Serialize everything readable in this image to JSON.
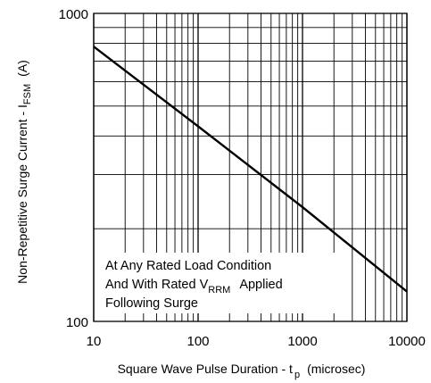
{
  "chart_data": {
    "type": "line",
    "title": "",
    "x_scale": "log",
    "y_scale": "log",
    "xlim": [
      10,
      10000
    ],
    "ylim": [
      100,
      1000
    ],
    "grid": true,
    "x_ticks": [
      {
        "value": 10,
        "label": "10"
      },
      {
        "value": 100,
        "label": "100"
      },
      {
        "value": 1000,
        "label": "1000"
      },
      {
        "value": 10000,
        "label": "10000"
      }
    ],
    "y_ticks": [
      {
        "value": 100,
        "label": "100"
      },
      {
        "value": 1000,
        "label": "1000"
      }
    ],
    "xlabel": {
      "main": "Square Wave Pulse Duration - t",
      "subscript": "p",
      "unit": "(microsec)"
    },
    "ylabel": {
      "main": "Non-Repetitive Surge Current - I",
      "subscript": "FSM",
      "unit": "(A)"
    },
    "series": [
      {
        "x": [
          10,
          100,
          1000,
          10000
        ],
        "y": [
          780,
          430,
          235,
          125
        ]
      }
    ],
    "annotation": {
      "line1": "At Any Rated Load Condition",
      "line2_before": "And With Rated V",
      "line2_sub": "RRM",
      "line2_after": "Applied",
      "line3": "Following Surge"
    }
  }
}
